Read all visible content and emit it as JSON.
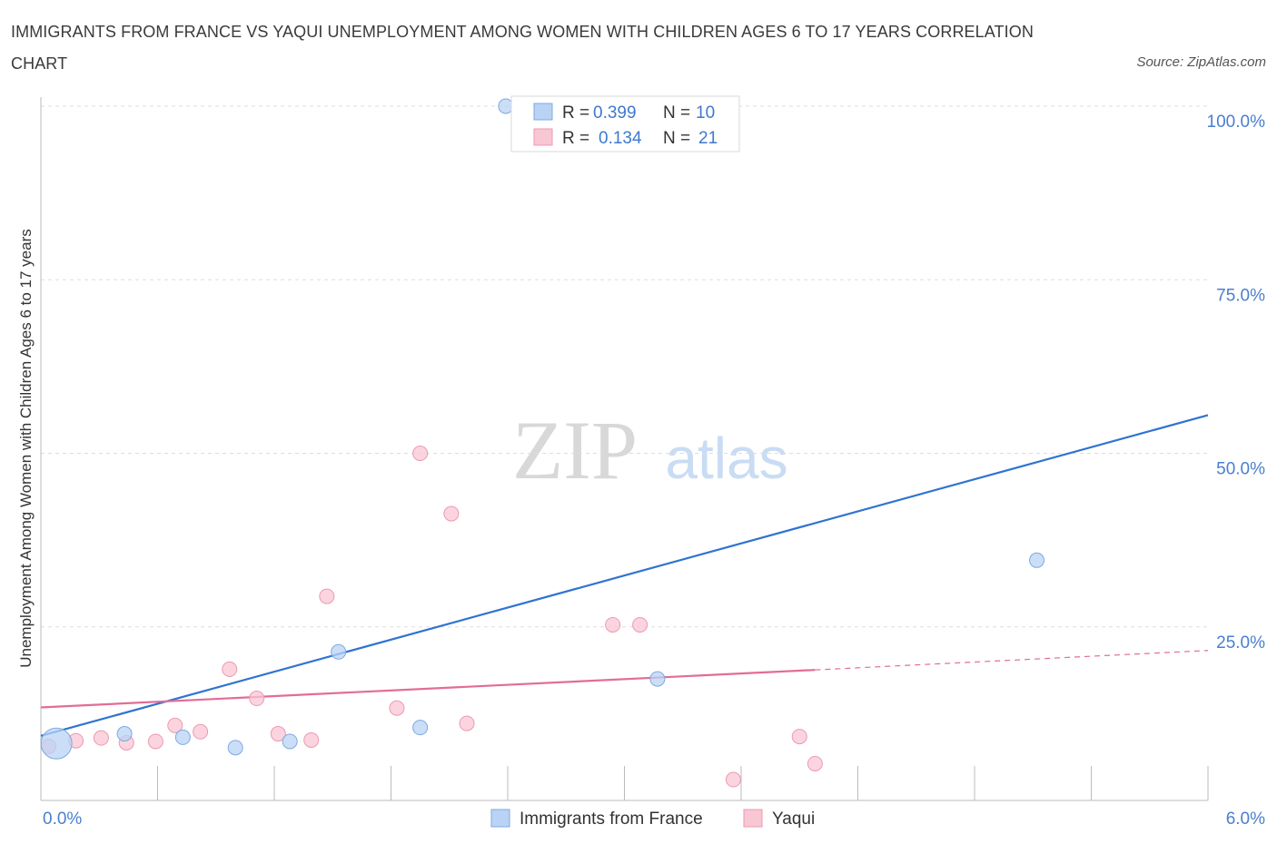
{
  "title": "IMMIGRANTS FROM FRANCE VS YAQUI UNEMPLOYMENT AMONG WOMEN WITH CHILDREN AGES 6 TO 17 YEARS CORRELATION CHART",
  "source": "Source: ZipAtlas.com",
  "watermark": {
    "zip": "ZIP",
    "atlas": "atlas"
  },
  "colors": {
    "france_fill": "#b9d3f5",
    "france_stroke": "#7ea9e0",
    "france_line": "#2f74d0",
    "yaqui_fill": "#f9c6d4",
    "yaqui_stroke": "#eb9ab1",
    "yaqui_line": "#e26d96",
    "tick_label": "#4a7fd0",
    "grid": "#dddddd"
  },
  "legend_box": {
    "rows": [
      {
        "r_label": "R = ",
        "r_value": "0.399",
        "n_label": "N = ",
        "n_value": "10"
      },
      {
        "r_label": "R = ",
        "r_value": "0.134",
        "n_label": "N = ",
        "n_value": "21"
      }
    ]
  },
  "chart_data": {
    "type": "scatter",
    "ylabel": "Unemployment Among Women with Children Ages 6 to 17 years",
    "xlim": [
      0,
      6.0
    ],
    "ylim": [
      0,
      100
    ],
    "x_ticks": [
      "0.0%",
      "6.0%"
    ],
    "y_ticks": [
      {
        "value": 100,
        "label": "100.0%"
      },
      {
        "value": 75,
        "label": "75.0%"
      },
      {
        "value": 50,
        "label": "50.0%"
      },
      {
        "value": 25,
        "label": "25.0%"
      }
    ],
    "grid": true,
    "legend_position": "bottom",
    "series": [
      {
        "name": "Immigrants from France",
        "points": [
          {
            "x": 0.08,
            "y": 8.2,
            "big": true
          },
          {
            "x": 0.43,
            "y": 9.6
          },
          {
            "x": 0.73,
            "y": 9.1
          },
          {
            "x": 1.0,
            "y": 7.6
          },
          {
            "x": 1.28,
            "y": 8.5
          },
          {
            "x": 1.53,
            "y": 21.4
          },
          {
            "x": 1.95,
            "y": 10.5
          },
          {
            "x": 2.39,
            "y": 100.0
          },
          {
            "x": 3.17,
            "y": 17.5
          },
          {
            "x": 5.12,
            "y": 34.6
          }
        ],
        "trend": {
          "x1": 0.0,
          "y1": 9.3,
          "x2": 6.0,
          "y2": 55.5
        }
      },
      {
        "name": "Yaqui",
        "points": [
          {
            "x": 0.04,
            "y": 7.8
          },
          {
            "x": 0.18,
            "y": 8.6
          },
          {
            "x": 0.31,
            "y": 9.0
          },
          {
            "x": 0.44,
            "y": 8.3
          },
          {
            "x": 0.59,
            "y": 8.5
          },
          {
            "x": 0.69,
            "y": 10.8
          },
          {
            "x": 0.82,
            "y": 9.9
          },
          {
            "x": 0.97,
            "y": 18.9
          },
          {
            "x": 1.11,
            "y": 14.7
          },
          {
            "x": 1.22,
            "y": 9.6
          },
          {
            "x": 1.39,
            "y": 8.7
          },
          {
            "x": 1.47,
            "y": 29.4
          },
          {
            "x": 1.83,
            "y": 13.3
          },
          {
            "x": 1.95,
            "y": 50.0
          },
          {
            "x": 2.11,
            "y": 41.3
          },
          {
            "x": 2.19,
            "y": 11.1
          },
          {
            "x": 2.94,
            "y": 25.3
          },
          {
            "x": 3.08,
            "y": 25.3
          },
          {
            "x": 3.56,
            "y": 3.0
          },
          {
            "x": 3.9,
            "y": 9.2
          },
          {
            "x": 3.98,
            "y": 5.3
          }
        ],
        "trend": {
          "x1": 0.0,
          "y1": 13.4,
          "x2": 3.98,
          "y2": 18.8,
          "x_dash_end": 6.0,
          "y_dash_end": 21.6
        }
      }
    ]
  }
}
